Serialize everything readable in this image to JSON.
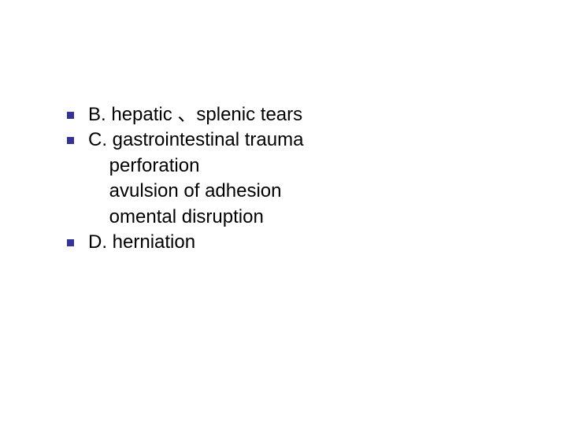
{
  "slide": {
    "background_color": "#ffffff",
    "bullet_color": "#333399",
    "text_color": "#000000",
    "font_size_pt": 24,
    "font_family": "Verdana",
    "lines": [
      {
        "bullet": true,
        "text": "B. hepatic 、splenic tears"
      },
      {
        "bullet": true,
        "text": "C. gastrointestinal trauma"
      },
      {
        "bullet": false,
        "text": "    perforation"
      },
      {
        "bullet": false,
        "text": "    avulsion of adhesion"
      },
      {
        "bullet": false,
        "text": "    omental disruption"
      },
      {
        "bullet": true,
        "text": "D. herniation"
      }
    ]
  }
}
